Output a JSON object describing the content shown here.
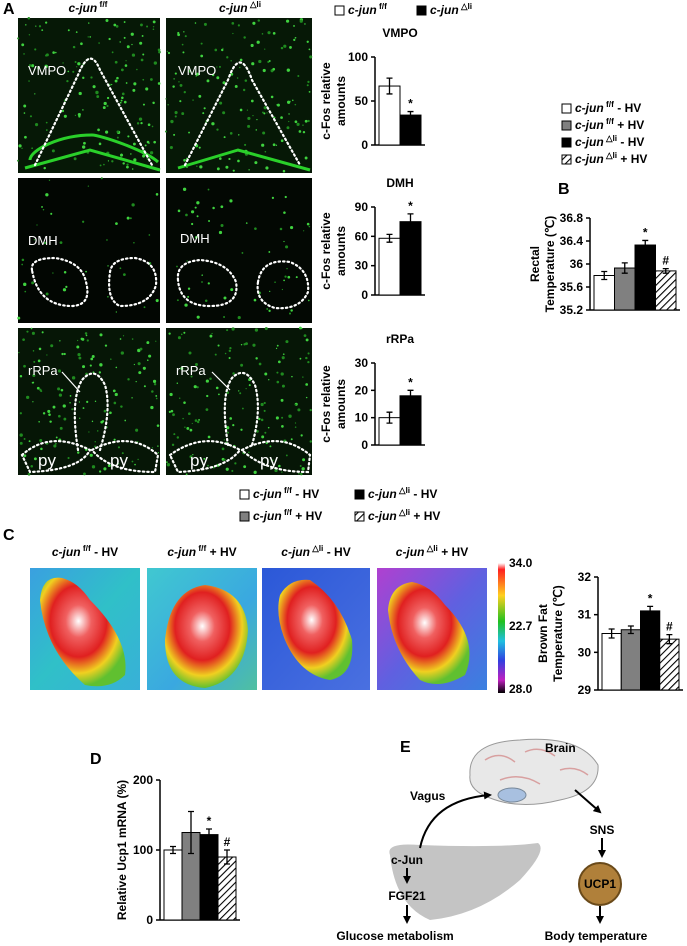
{
  "panel_labels": [
    "A",
    "B",
    "C",
    "D",
    "E"
  ],
  "microscopy": {
    "headers": [
      "c-jun f/f",
      "c-jun △li"
    ],
    "regions": [
      [
        "VMPO",
        "VMPO"
      ],
      [
        "DMH",
        "DMH"
      ],
      [
        "rRPa",
        "rRPa"
      ]
    ],
    "py": [
      "py",
      "py",
      "py",
      "py"
    ]
  },
  "thermal": {
    "titles": [
      "c-jun f/f - HV",
      "c-jun f/f + HV",
      "c-jun △li - HV",
      "c-jun △li + HV"
    ],
    "scale": [
      "34.0",
      "22.7",
      "28.0"
    ]
  },
  "diagram": {
    "brain": "Brain",
    "vagus": "Vagus",
    "cjun": "c-Jun",
    "fgf21": "FGF21",
    "glucose": "Glucose metabolism",
    "sns": "SNS",
    "ucp1": "UCP1",
    "body": "Body temperature"
  },
  "chart_data": [
    {
      "type": "bar",
      "title": "VMPO",
      "ylabel": [
        "c-Fos relative",
        "amounts"
      ],
      "categories": [
        null,
        null
      ],
      "values": [
        67,
        34
      ],
      "errors": [
        9,
        4
      ],
      "sig": [
        null,
        "*"
      ],
      "colors": [
        "#ffffff",
        "#000000"
      ],
      "hatch": [
        false,
        false
      ],
      "legend": [
        "c-jun f/f",
        "c-jun △li"
      ],
      "ylim": [
        0,
        100
      ],
      "yticks": [
        0,
        50,
        100
      ]
    },
    {
      "type": "bar",
      "title": "DMH",
      "ylabel": [
        "c-Fos relative",
        "amounts"
      ],
      "categories": [
        null,
        null
      ],
      "values": [
        58,
        75
      ],
      "errors": [
        4,
        8
      ],
      "sig": [
        null,
        "*"
      ],
      "colors": [
        "#ffffff",
        "#000000"
      ],
      "hatch": [
        false,
        false
      ],
      "ylim": [
        0,
        90
      ],
      "yticks": [
        0,
        30,
        60,
        90
      ]
    },
    {
      "type": "bar",
      "title": "rRPa",
      "ylabel": [
        "c-Fos relative",
        "amounts"
      ],
      "categories": [
        null,
        null
      ],
      "values": [
        10,
        18
      ],
      "errors": [
        2,
        2
      ],
      "sig": [
        null,
        "*"
      ],
      "colors": [
        "#ffffff",
        "#000000"
      ],
      "hatch": [
        false,
        false
      ],
      "ylim": [
        0,
        30
      ],
      "yticks": [
        0,
        10,
        20,
        30
      ]
    },
    {
      "type": "bar",
      "ylabel": [
        "Rectal",
        "Temperature (℃)"
      ],
      "categories": [
        null,
        null,
        null,
        null
      ],
      "values": [
        35.8,
        35.93,
        36.33,
        35.88
      ],
      "errors": [
        0.07,
        0.09,
        0.08,
        0.04
      ],
      "sig": [
        null,
        null,
        "*",
        "#"
      ],
      "colors": [
        "#ffffff",
        "#808080",
        "#000000",
        "#ffffff"
      ],
      "hatch": [
        false,
        false,
        false,
        true
      ],
      "legend": [
        "c-jun f/f - HV",
        "c-jun f/f + HV",
        "c-jun △li - HV",
        "c-jun △li + HV"
      ],
      "ylim": [
        35.2,
        36.8
      ],
      "yticks": [
        35.2,
        35.6,
        36,
        36.4,
        36.8
      ]
    },
    {
      "type": "bar",
      "ylabel": [
        "Brown Fat",
        "Temperature (℃)"
      ],
      "categories": [
        null,
        null,
        null,
        null
      ],
      "values": [
        30.5,
        30.6,
        31.1,
        30.35
      ],
      "errors": [
        0.12,
        0.1,
        0.12,
        0.12
      ],
      "sig": [
        null,
        null,
        "*",
        "#"
      ],
      "colors": [
        "#ffffff",
        "#808080",
        "#000000",
        "#ffffff"
      ],
      "hatch": [
        false,
        false,
        false,
        true
      ],
      "legend": [
        "c-jun f/f - HV",
        "c-jun f/f + HV",
        "c-jun △li - HV",
        "c-jun △li + HV"
      ],
      "ylim": [
        29,
        32
      ],
      "yticks": [
        29,
        30,
        31,
        32
      ]
    },
    {
      "type": "bar",
      "ylabel": [
        "Relative Ucp1 mRNA (%)"
      ],
      "categories": [
        null,
        null,
        null,
        null
      ],
      "values": [
        100,
        125,
        122,
        90
      ],
      "errors": [
        5,
        30,
        8,
        10
      ],
      "sig": [
        null,
        null,
        "*",
        "#"
      ],
      "colors": [
        "#ffffff",
        "#808080",
        "#000000",
        "#ffffff"
      ],
      "hatch": [
        false,
        false,
        false,
        true
      ],
      "ylim": [
        0,
        200
      ],
      "yticks": [
        0,
        100,
        200
      ]
    }
  ]
}
